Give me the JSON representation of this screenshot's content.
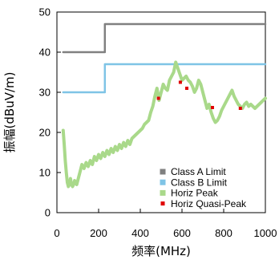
{
  "chart_data": {
    "type": "line",
    "xlabel": "频率(MHz)",
    "ylabel": "振幅(dBuV/m)",
    "xlim": [
      0,
      1000
    ],
    "ylim": [
      0,
      50
    ],
    "x_ticks": [
      "0",
      "200",
      "400",
      "600",
      "800",
      "1000"
    ],
    "y_ticks": [
      "0",
      "10",
      "20",
      "30",
      "40",
      "50"
    ],
    "grid": false,
    "legend_position": "bottom-right",
    "series": [
      {
        "name": "Class A Limit",
        "color": "#808080",
        "style": "step",
        "x": [
          30,
          230,
          230,
          1000
        ],
        "y": [
          40,
          40,
          47,
          47
        ]
      },
      {
        "name": "Class B Limit",
        "color": "#7fc4e6",
        "style": "step",
        "x": [
          30,
          230,
          230,
          1000
        ],
        "y": [
          30,
          30,
          37,
          37
        ]
      },
      {
        "name": "Horiz Peak",
        "color": "#a9d98a",
        "style": "line",
        "x": [
          30,
          35,
          40,
          45,
          50,
          55,
          60,
          65,
          70,
          75,
          80,
          85,
          90,
          95,
          100,
          110,
          120,
          130,
          140,
          150,
          160,
          170,
          180,
          190,
          200,
          210,
          220,
          230,
          240,
          250,
          260,
          270,
          280,
          290,
          300,
          310,
          320,
          330,
          340,
          350,
          360,
          370,
          380,
          390,
          400,
          410,
          420,
          430,
          440,
          450,
          460,
          470,
          480,
          490,
          500,
          510,
          520,
          530,
          540,
          550,
          560,
          570,
          580,
          590,
          600,
          610,
          620,
          630,
          640,
          650,
          660,
          670,
          680,
          690,
          700,
          710,
          720,
          730,
          740,
          750,
          760,
          770,
          780,
          790,
          800,
          810,
          820,
          830,
          840,
          850,
          860,
          870,
          880,
          890,
          900,
          910,
          920,
          930,
          940,
          950,
          960,
          970,
          980,
          990,
          1000
        ],
        "y": [
          20.5,
          17,
          13,
          10,
          7.5,
          6.5,
          7,
          8.5,
          7,
          6.5,
          7,
          8,
          7.5,
          7,
          8,
          10,
          12,
          11,
          12.5,
          11.5,
          13,
          12,
          14,
          13,
          14.5,
          13.5,
          15,
          14,
          15.5,
          14.5,
          16,
          15,
          16.5,
          15.5,
          17,
          16,
          17.5,
          16.5,
          18,
          17,
          18.5,
          19,
          19.5,
          20,
          20.5,
          21,
          22,
          22.5,
          23,
          25,
          26.5,
          29,
          31,
          28,
          30,
          32,
          31,
          30.5,
          33,
          34,
          35,
          37.5,
          36,
          34.5,
          33,
          33.5,
          34,
          33,
          32.5,
          31.5,
          30,
          31,
          33,
          32,
          30,
          28,
          26,
          27,
          25,
          23.5,
          22.5,
          23,
          24,
          25.5,
          26.5,
          27.5,
          28.5,
          29.5,
          30.5,
          29,
          28,
          27,
          26.5,
          26,
          27,
          27.5,
          26.5,
          27,
          26.5,
          26,
          26.5,
          27,
          27.5,
          28,
          28.5
        ]
      },
      {
        "name": "Horiz Quasi-Peak",
        "color": "#e00000",
        "style": "points",
        "x": [
          487,
          592,
          623,
          746,
          880
        ],
        "y": [
          28.5,
          32.5,
          31,
          26.2,
          26
        ]
      }
    ]
  }
}
